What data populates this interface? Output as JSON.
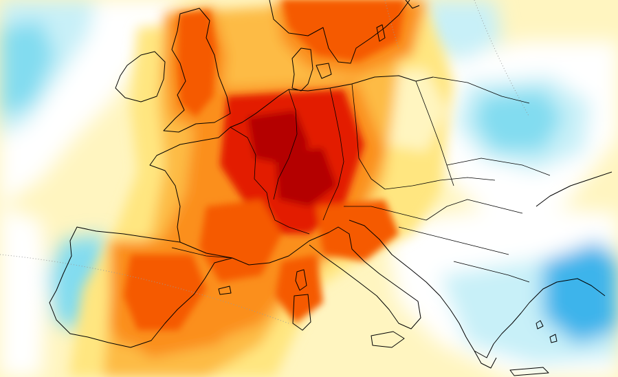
{
  "map": {
    "type": "temperature anomaly heat map",
    "region": "Europe",
    "legend_visible": false,
    "labels_visible": false,
    "colors": {
      "dark_red": "#b40000",
      "red": "#e31a00",
      "red_orange": "#f55a00",
      "orange": "#fb8f1e",
      "light_orange": "#fdbb44",
      "yellow": "#ffe680",
      "pale_yellow": "#fff5c0",
      "white": "#ffffff",
      "light_cyan": "#c8f0f8",
      "cyan": "#82dcf0",
      "blue": "#3cb4eb",
      "deep_blue": "#1e8cdc",
      "coastline": "#000000",
      "graticule": "#9a9a9a"
    }
  }
}
